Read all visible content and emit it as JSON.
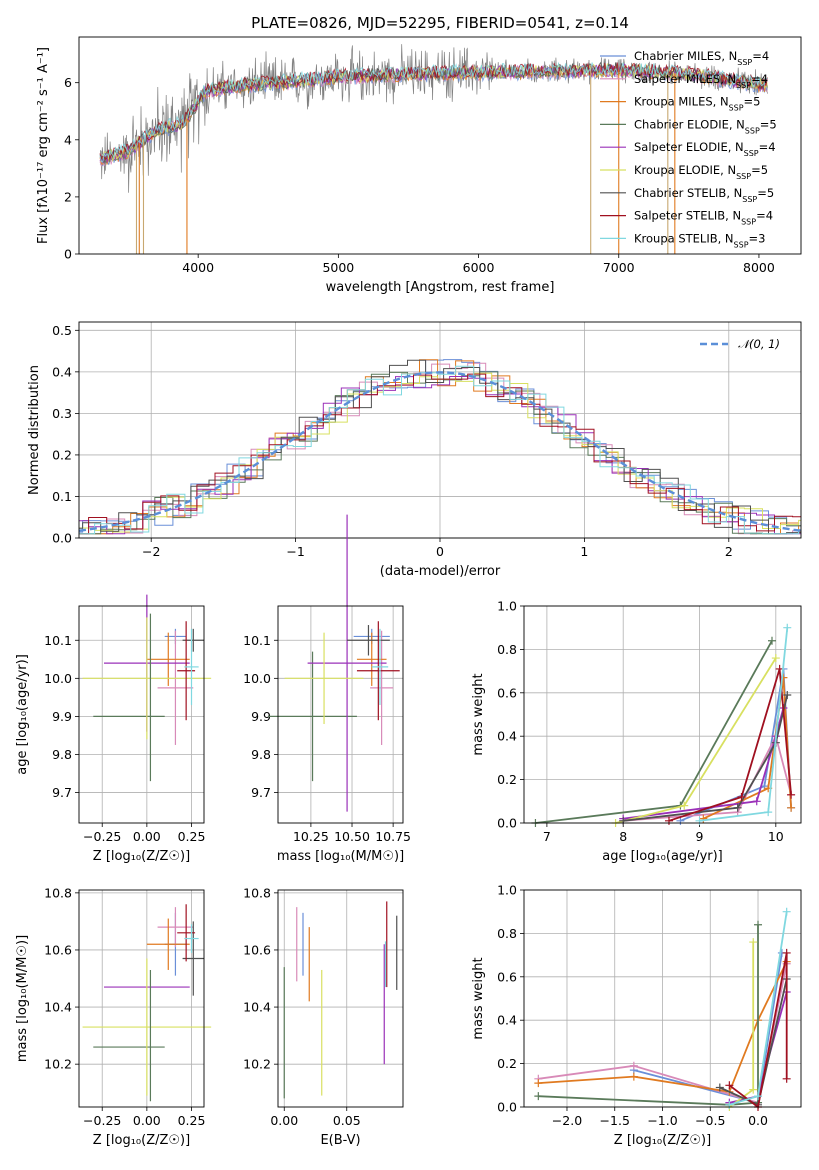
{
  "colors": {
    "Chabrier MILES": "#6a8fd8",
    "Salpeter MILES": "#d88ab8",
    "Kroupa MILES": "#e07a20",
    "Chabrier ELODIE": "#5a7a5a",
    "Salpeter ELODIE": "#9a30b8",
    "Kroupa ELODIE": "#d8e060",
    "Chabrier STELIB": "#505050",
    "Salpeter STELIB": "#a01020",
    "Kroupa STELIB": "#80d8e0",
    "gray": "#808080",
    "normal": "#5b8fd8",
    "grid": "#b0b0b0"
  },
  "chart_data": [
    {
      "id": "spectrum",
      "type": "line",
      "title": "PLATE=0826, MJD=52295, FIBERID=0541, z=0.14",
      "xlabel": "wavelength [Angstrom, rest frame]",
      "ylabel": "Flux [fλ10⁻¹⁷ erg cm⁻² s⁻¹ A⁻¹]",
      "xlim": [
        3150,
        8300
      ],
      "ylim": [
        0,
        7.6
      ],
      "xticks": [
        4000,
        5000,
        6000,
        7000,
        8000
      ],
      "yticks": [
        0,
        2,
        4,
        6
      ],
      "grid": false,
      "legend_position": "top-right",
      "data_range": [
        3300,
        8060
      ],
      "continuum": [
        [
          3300,
          3.3
        ],
        [
          3500,
          3.6
        ],
        [
          3700,
          4.3
        ],
        [
          3900,
          4.6
        ],
        [
          4050,
          5.7
        ],
        [
          4300,
          5.9
        ],
        [
          4600,
          6.0
        ],
        [
          5000,
          6.2
        ],
        [
          5500,
          6.3
        ],
        [
          6000,
          6.35
        ],
        [
          6500,
          6.4
        ],
        [
          7000,
          6.45
        ],
        [
          7500,
          6.3
        ],
        [
          8060,
          5.9
        ]
      ],
      "series": [
        {
          "name": "Chabrier MILES, N_SSP=4",
          "label": "Chabrier MILES, N",
          "sub": "SSP",
          "suffix": "=4",
          "model": "Chabrier MILES"
        },
        {
          "name": "Salpeter MILES, N_SSP=4",
          "label": "Salpeter MILES, N",
          "sub": "SSP",
          "suffix": "=4",
          "model": "Salpeter MILES"
        },
        {
          "name": "Kroupa MILES, N_SSP=5",
          "label": "Kroupa MILES, N",
          "sub": "SSP",
          "suffix": "=5",
          "model": "Kroupa MILES"
        },
        {
          "name": "Chabrier ELODIE, N_SSP=5",
          "label": "Chabrier ELODIE, N",
          "sub": "SSP",
          "suffix": "=5",
          "model": "Chabrier ELODIE"
        },
        {
          "name": "Salpeter ELODIE, N_SSP=4",
          "label": "Salpeter ELODIE, N",
          "sub": "SSP",
          "suffix": "=4",
          "model": "Salpeter ELODIE"
        },
        {
          "name": "Kroupa ELODIE, N_SSP=5",
          "label": "Kroupa ELODIE, N",
          "sub": "SSP",
          "suffix": "=5",
          "model": "Kroupa ELODIE"
        },
        {
          "name": "Chabrier STELIB, N_SSP=5",
          "label": "Chabrier STELIB, N",
          "sub": "SSP",
          "suffix": "=5",
          "model": "Chabrier STELIB"
        },
        {
          "name": "Salpeter STELIB, N_SSP=4",
          "label": "Salpeter STELIB, N",
          "sub": "SSP",
          "suffix": "=4",
          "model": "Salpeter STELIB"
        },
        {
          "name": "Kroupa STELIB, N_SSP=3",
          "label": "Kroupa STELIB, N",
          "sub": "SSP",
          "suffix": "=3",
          "model": "Kroupa STELIB"
        }
      ],
      "drops": [
        3560,
        3580,
        3610,
        3920,
        6800,
        7000,
        7350,
        7400
      ]
    },
    {
      "id": "residuals",
      "type": "step",
      "xlabel": "(data-model)/error",
      "ylabel": "Normed distribution",
      "xlim": [
        -2.5,
        2.5
      ],
      "ylim": [
        0,
        0.52
      ],
      "xticks": [
        -2,
        -1,
        0,
        1,
        2
      ],
      "yticks": [
        0.0,
        0.1,
        0.2,
        0.3,
        0.4,
        0.5
      ],
      "grid": true,
      "legend_position": "top-right",
      "legend": "𝒩(0, 1)",
      "bin_width": 0.125
    },
    {
      "id": "age_vs_Z",
      "type": "errorbar",
      "xlabel": "Z [log₁₀(Z/Z☉)]",
      "ylabel": "age  [log₁₀(age/yr)]",
      "xlim": [
        -0.38,
        0.32
      ],
      "ylim": [
        9.62,
        10.19
      ],
      "xticks": [
        -0.25,
        0.0,
        0.25
      ],
      "yticks": [
        9.7,
        9.8,
        9.9,
        10.0,
        10.1
      ],
      "grid": true,
      "points": [
        {
          "model": "Chabrier MILES",
          "x": 0.16,
          "y": 10.11,
          "xerr": 0.06,
          "yerr": 0.02
        },
        {
          "model": "Salpeter MILES",
          "x": 0.16,
          "y": 9.975,
          "xerr": 0.1,
          "yerr": 0.15
        },
        {
          "model": "Kroupa MILES",
          "x": 0.12,
          "y": 10.05,
          "xerr": 0.12,
          "yerr": 0.07
        },
        {
          "model": "Chabrier ELODIE",
          "x": -0.1,
          "y": 9.9,
          "xerr": 0.2,
          "yerr": 0.0
        },
        {
          "model": "Salpeter ELODIE",
          "x": 0.0,
          "y": 10.04,
          "xerr": 0.24,
          "yerr": 0.18
        },
        {
          "model": "Kroupa ELODIE",
          "x": 0.0,
          "y": 10.0,
          "xerr": 0.36,
          "yerr": 0.16
        },
        {
          "model": "Chabrier STELIB",
          "x": 0.26,
          "y": 10.1,
          "xerr": 0.06,
          "yerr": 0.03
        },
        {
          "model": "Salpeter STELIB",
          "x": 0.22,
          "y": 10.02,
          "xerr": 0.05,
          "yerr": 0.13
        },
        {
          "model": "Kroupa STELIB",
          "x": 0.25,
          "y": 10.03,
          "xerr": 0.04,
          "yerr": 0.1
        },
        {
          "model": "Chabrier ELODIE",
          "x": 0.02,
          "y": 9.95,
          "xerr": 0.0,
          "yerr": 0.22
        }
      ]
    },
    {
      "id": "age_vs_mass",
      "type": "errorbar",
      "xlabel": "mass [log₁₀(M/M☉)]",
      "ylabel": "",
      "xlim": [
        10.05,
        10.81
      ],
      "ylim": [
        9.62,
        10.19
      ],
      "xticks": [
        10.25,
        10.5,
        10.75
      ],
      "yticks": [
        9.7,
        9.8,
        9.9,
        10.0,
        10.1
      ],
      "grid": true,
      "points": [
        {
          "model": "Chabrier MILES",
          "x": 10.62,
          "y": 10.11,
          "xerr": 0.11,
          "yerr": 0.02
        },
        {
          "model": "Salpeter MILES",
          "x": 10.68,
          "y": 9.975,
          "xerr": 0.07,
          "yerr": 0.15
        },
        {
          "model": "Kroupa MILES",
          "x": 10.62,
          "y": 10.05,
          "xerr": 0.09,
          "yerr": 0.07
        },
        {
          "model": "Chabrier ELODIE",
          "x": 10.26,
          "y": 9.9,
          "xerr": 0.27,
          "yerr": 0.17
        },
        {
          "model": "Salpeter ELODIE",
          "x": 10.47,
          "y": 10.04,
          "xerr": 0.24,
          "yerr": 0.39
        },
        {
          "model": "Kroupa ELODIE",
          "x": 10.33,
          "y": 10.0,
          "xerr": 0.24,
          "yerr": 0.12
        },
        {
          "model": "Chabrier STELIB",
          "x": 10.6,
          "y": 10.1,
          "xerr": 0.13,
          "yerr": 0.04
        },
        {
          "model": "Salpeter STELIB",
          "x": 10.66,
          "y": 10.02,
          "xerr": 0.13,
          "yerr": 0.13
        },
        {
          "model": "Kroupa STELIB",
          "x": 10.67,
          "y": 10.03,
          "xerr": 0.05,
          "yerr": 0.1
        }
      ]
    },
    {
      "id": "weight_vs_age",
      "type": "line",
      "xlabel": "age  [log₁₀(age/yr)]",
      "ylabel": "mass weight",
      "xlim": [
        6.7,
        10.33
      ],
      "ylim": [
        0,
        1.0
      ],
      "xticks": [
        7,
        8,
        9,
        10
      ],
      "yticks": [
        0.0,
        0.2,
        0.4,
        0.6,
        0.8,
        1.0
      ],
      "grid": true,
      "series": [
        {
          "model": "Chabrier MILES",
          "x": [
            8.75,
            9.85,
            10.1,
            10.2
          ],
          "y": [
            0.01,
            0.17,
            0.71,
            0.07
          ]
        },
        {
          "model": "Salpeter MILES",
          "x": [
            8.0,
            9.5,
            10.0,
            10.2
          ],
          "y": [
            0.01,
            0.05,
            0.4,
            0.13
          ]
        },
        {
          "model": "Kroupa MILES",
          "x": [
            9.05,
            9.9,
            10.1,
            10.2
          ],
          "y": [
            0.02,
            0.16,
            0.67,
            0.07
          ]
        },
        {
          "model": "Chabrier ELODIE",
          "x": [
            6.85,
            8.75,
            9.95
          ],
          "y": [
            0.0,
            0.08,
            0.84
          ]
        },
        {
          "model": "Salpeter ELODIE",
          "x": [
            8.0,
            9.75,
            10.0,
            10.1
          ],
          "y": [
            0.02,
            0.1,
            0.4,
            0.53
          ]
        },
        {
          "model": "Kroupa ELODIE",
          "x": [
            7.9,
            8.8,
            10.0
          ],
          "y": [
            0.0,
            0.08,
            0.76
          ]
        },
        {
          "model": "Chabrier STELIB",
          "x": [
            8.0,
            9.5,
            10.0,
            10.15
          ],
          "y": [
            0.01,
            0.07,
            0.37,
            0.59
          ]
        },
        {
          "model": "Salpeter STELIB",
          "x": [
            8.6,
            9.55,
            10.05,
            10.2
          ],
          "y": [
            0.01,
            0.12,
            0.71,
            0.13
          ]
        },
        {
          "model": "Kroupa STELIB",
          "x": [
            9.0,
            9.9,
            10.15
          ],
          "y": [
            0.01,
            0.05,
            0.9
          ]
        }
      ]
    },
    {
      "id": "mass_vs_Z",
      "type": "errorbar",
      "xlabel": "Z [log₁₀(Z/Z☉)]",
      "ylabel": "mass [log₁₀(M/M☉)]",
      "xlim": [
        -0.38,
        0.32
      ],
      "ylim": [
        10.05,
        10.81
      ],
      "xticks": [
        -0.25,
        0.0,
        0.25
      ],
      "yticks": [
        10.2,
        10.4,
        10.6,
        10.8
      ],
      "grid": true,
      "points": [
        {
          "model": "Chabrier MILES",
          "x": 0.16,
          "y": 10.62,
          "xerr": 0.06,
          "yerr": 0.11
        },
        {
          "model": "Salpeter MILES",
          "x": 0.16,
          "y": 10.68,
          "xerr": 0.1,
          "yerr": 0.07
        },
        {
          "model": "Kroupa MILES",
          "x": 0.12,
          "y": 10.62,
          "xerr": 0.12,
          "yerr": 0.09
        },
        {
          "model": "Chabrier ELODIE",
          "x": -0.1,
          "y": 10.26,
          "xerr": 0.2,
          "yerr": 0.0
        },
        {
          "model": "Salpeter ELODIE",
          "x": 0.0,
          "y": 10.47,
          "xerr": 0.24,
          "yerr": 0.0
        },
        {
          "model": "Kroupa ELODIE",
          "x": 0.0,
          "y": 10.33,
          "xerr": 0.36,
          "yerr": 0.24
        },
        {
          "model": "Chabrier STELIB",
          "x": 0.26,
          "y": 10.57,
          "xerr": 0.06,
          "yerr": 0.13
        },
        {
          "model": "Salpeter STELIB",
          "x": 0.22,
          "y": 10.66,
          "xerr": 0.05,
          "yerr": 0.1
        },
        {
          "model": "Kroupa STELIB",
          "x": 0.25,
          "y": 10.64,
          "xerr": 0.04,
          "yerr": 0.05
        },
        {
          "model": "Chabrier ELODIE",
          "x": 0.02,
          "y": 10.3,
          "xerr": 0.0,
          "yerr": 0.23
        }
      ]
    },
    {
      "id": "mass_vs_ebv",
      "type": "errorbar",
      "xlabel": "E(B-V)",
      "ylabel": "",
      "xlim": [
        -0.005,
        0.095
      ],
      "ylim": [
        10.05,
        10.81
      ],
      "xticks": [
        0.0,
        0.05
      ],
      "yticks": [
        10.2,
        10.4,
        10.6,
        10.8
      ],
      "grid": true,
      "points": [
        {
          "model": "Chabrier MILES",
          "x": 0.015,
          "y": 10.62,
          "xerr": 0.0,
          "yerr": 0.11
        },
        {
          "model": "Salpeter MILES",
          "x": 0.01,
          "y": 10.62,
          "xerr": 0.0,
          "yerr": 0.13
        },
        {
          "model": "Kroupa MILES",
          "x": 0.02,
          "y": 10.55,
          "xerr": 0.0,
          "yerr": 0.13
        },
        {
          "model": "Chabrier ELODIE",
          "x": 0.0,
          "y": 10.31,
          "xerr": 0.0,
          "yerr": 0.23
        },
        {
          "model": "Salpeter ELODIE",
          "x": 0.08,
          "y": 10.41,
          "xerr": 0.0,
          "yerr": 0.21
        },
        {
          "model": "Kroupa ELODIE",
          "x": 0.03,
          "y": 10.31,
          "xerr": 0.0,
          "yerr": 0.22
        },
        {
          "model": "Chabrier STELIB",
          "x": 0.09,
          "y": 10.59,
          "xerr": 0.0,
          "yerr": 0.13
        },
        {
          "model": "Salpeter STELIB",
          "x": 0.082,
          "y": 10.62,
          "xerr": 0.0,
          "yerr": 0.15
        },
        {
          "model": "Kroupa STELIB",
          "x": 0.081,
          "y": 10.55,
          "xerr": 0.0,
          "yerr": 0.08
        }
      ]
    },
    {
      "id": "weight_vs_Z",
      "type": "line",
      "xlabel": "Z [log₁₀(Z/Z☉)]",
      "ylabel": "mass weight",
      "xlim": [
        -2.45,
        0.45
      ],
      "ylim": [
        0,
        1.0
      ],
      "xticks": [
        -2.0,
        -1.5,
        -1.0,
        -0.5,
        0.0
      ],
      "yticks": [
        0.0,
        0.2,
        0.4,
        0.6,
        0.8,
        1.0
      ],
      "grid": true,
      "series": [
        {
          "model": "Chabrier MILES",
          "x": [
            -1.3,
            0.0,
            0.25
          ],
          "y": [
            0.17,
            0.02,
            0.71
          ]
        },
        {
          "model": "Salpeter MILES",
          "x": [
            -2.3,
            -1.3,
            0.0,
            0.3
          ],
          "y": [
            0.13,
            0.19,
            0.02,
            0.66
          ]
        },
        {
          "model": "Kroupa MILES",
          "x": [
            -2.3,
            -1.3,
            -0.3,
            0.0,
            0.3
          ],
          "y": [
            0.11,
            0.14,
            0.07,
            0.4,
            0.67
          ]
        },
        {
          "model": "Chabrier ELODIE",
          "x": [
            -2.3,
            -0.3,
            0.0,
            0.0
          ],
          "y": [
            0.05,
            0.01,
            0.02,
            0.84
          ]
        },
        {
          "model": "Salpeter ELODIE",
          "x": [
            -0.3,
            0.0,
            0.3
          ],
          "y": [
            0.02,
            0.05,
            0.53
          ]
        },
        {
          "model": "Kroupa ELODIE",
          "x": [
            -0.3,
            -0.05,
            -0.05
          ],
          "y": [
            0.0,
            0.08,
            0.76
          ]
        },
        {
          "model": "Chabrier STELIB",
          "x": [
            -0.4,
            0.0,
            0.3
          ],
          "y": [
            0.09,
            0.01,
            0.59
          ]
        },
        {
          "model": "Salpeter STELIB",
          "x": [
            -0.3,
            0.0,
            0.3,
            0.3
          ],
          "y": [
            0.1,
            0.0,
            0.71,
            0.13
          ]
        },
        {
          "model": "Kroupa STELIB",
          "x": [
            -0.3,
            0.0,
            0.3
          ],
          "y": [
            0.01,
            0.05,
            0.9
          ]
        }
      ]
    }
  ]
}
